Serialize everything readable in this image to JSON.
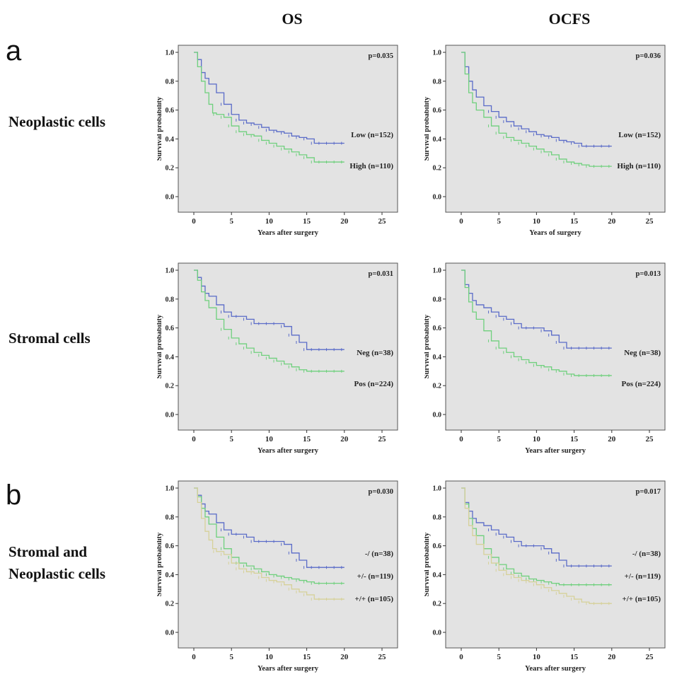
{
  "column_headers": [
    "OS",
    "OCFS"
  ],
  "panel_letters": {
    "a": "a",
    "b": "b"
  },
  "row_labels": {
    "row1": "Neoplastic cells",
    "row2": "Stromal cells",
    "row3_line1": "Stromal and",
    "row3_line2": "Neoplastic cells"
  },
  "colors": {
    "blue": "#5a6bc8",
    "green": "#6fd07d",
    "beige": "#d6d199",
    "plot_bg": "#e3e3e3"
  },
  "chart_data": [
    {
      "type": "line",
      "title": "OS",
      "xlabel": "Years after surgery",
      "ylabel": "Survival probability",
      "xlim": [
        0,
        25
      ],
      "ylim": [
        0,
        1
      ],
      "xticks": [
        "0",
        "5",
        "10",
        "15",
        "20",
        "25"
      ],
      "yticks": [
        "0.0",
        "0.2",
        "0.4",
        "0.6",
        "0.8",
        "1.0"
      ],
      "annotation": "p=0.035",
      "series": [
        {
          "name": "Low (n=152)",
          "color": "#5a6bc8",
          "x": [
            0,
            0.5,
            1,
            1.5,
            2,
            3,
            4,
            5,
            6,
            7,
            8,
            9,
            10,
            11,
            12,
            13,
            14,
            15,
            16,
            17,
            18,
            19,
            20
          ],
          "y": [
            1.0,
            0.95,
            0.86,
            0.82,
            0.78,
            0.72,
            0.64,
            0.57,
            0.53,
            0.51,
            0.5,
            0.48,
            0.46,
            0.45,
            0.44,
            0.42,
            0.41,
            0.4,
            0.37,
            0.37,
            0.37,
            0.37,
            0.37
          ]
        },
        {
          "name": "High (n=110)",
          "color": "#6fd07d",
          "x": [
            0,
            0.5,
            1,
            1.5,
            2,
            2.5,
            3,
            4,
            5,
            6,
            7,
            8,
            9,
            10,
            11,
            12,
            13,
            14,
            15,
            16,
            17,
            18,
            19,
            20
          ],
          "y": [
            1.0,
            0.9,
            0.8,
            0.72,
            0.64,
            0.58,
            0.57,
            0.55,
            0.49,
            0.45,
            0.43,
            0.42,
            0.39,
            0.37,
            0.35,
            0.33,
            0.31,
            0.29,
            0.27,
            0.24,
            0.24,
            0.24,
            0.24,
            0.24
          ]
        }
      ]
    },
    {
      "type": "line",
      "title": "OCFS",
      "xlabel": "Years of surgery",
      "ylabel": "Survival probability",
      "xlim": [
        0,
        25
      ],
      "ylim": [
        0,
        1
      ],
      "xticks": [
        "0",
        "5",
        "10",
        "15",
        "20",
        "25"
      ],
      "yticks": [
        "0.0",
        "0.2",
        "0.4",
        "0.6",
        "0.8",
        "1.0"
      ],
      "annotation": "p=0.036",
      "series": [
        {
          "name": "Low (n=152)",
          "color": "#5a6bc8",
          "x": [
            0,
            0.5,
            1,
            1.5,
            2,
            3,
            4,
            5,
            6,
            7,
            8,
            9,
            10,
            11,
            12,
            13,
            14,
            15,
            16,
            17,
            18,
            19,
            20
          ],
          "y": [
            1.0,
            0.9,
            0.8,
            0.74,
            0.69,
            0.63,
            0.59,
            0.55,
            0.52,
            0.49,
            0.47,
            0.45,
            0.43,
            0.42,
            0.41,
            0.39,
            0.38,
            0.37,
            0.35,
            0.35,
            0.35,
            0.35,
            0.35
          ]
        },
        {
          "name": "High (n=110)",
          "color": "#6fd07d",
          "x": [
            0,
            0.5,
            1,
            1.5,
            2,
            3,
            4,
            5,
            6,
            7,
            8,
            9,
            10,
            11,
            12,
            13,
            14,
            15,
            16,
            17,
            18,
            19,
            20
          ],
          "y": [
            1.0,
            0.85,
            0.72,
            0.65,
            0.6,
            0.55,
            0.49,
            0.44,
            0.41,
            0.39,
            0.37,
            0.35,
            0.33,
            0.31,
            0.29,
            0.26,
            0.24,
            0.23,
            0.22,
            0.21,
            0.21,
            0.21,
            0.21
          ]
        }
      ]
    },
    {
      "type": "line",
      "title": "",
      "xlabel": "Years after surgery",
      "ylabel": "Survival probability",
      "xlim": [
        0,
        25
      ],
      "ylim": [
        0,
        1
      ],
      "xticks": [
        "0",
        "5",
        "10",
        "15",
        "20",
        "25"
      ],
      "yticks": [
        "0.0",
        "0.2",
        "0.4",
        "0.6",
        "0.8",
        "1.0"
      ],
      "annotation": "p=0.031",
      "series": [
        {
          "name": "Neg (n=38)",
          "color": "#5a6bc8",
          "x": [
            0,
            0.5,
            1,
            1.5,
            2,
            3,
            4,
            5,
            6,
            7,
            8,
            9,
            10,
            11,
            12,
            13,
            14,
            15,
            16,
            17,
            18,
            19,
            20
          ],
          "y": [
            1.0,
            0.95,
            0.89,
            0.84,
            0.82,
            0.76,
            0.71,
            0.68,
            0.68,
            0.66,
            0.63,
            0.63,
            0.63,
            0.63,
            0.61,
            0.55,
            0.5,
            0.45,
            0.45,
            0.45,
            0.45,
            0.45,
            0.45
          ]
        },
        {
          "name": "Pos (n=224)",
          "color": "#6fd07d",
          "x": [
            0,
            0.5,
            1,
            1.5,
            2,
            3,
            4,
            5,
            6,
            7,
            8,
            9,
            10,
            11,
            12,
            13,
            14,
            15,
            16,
            17,
            18,
            19,
            20
          ],
          "y": [
            1.0,
            0.93,
            0.85,
            0.79,
            0.74,
            0.66,
            0.59,
            0.53,
            0.49,
            0.46,
            0.43,
            0.41,
            0.39,
            0.37,
            0.35,
            0.33,
            0.31,
            0.3,
            0.3,
            0.3,
            0.3,
            0.3,
            0.3
          ]
        }
      ]
    },
    {
      "type": "line",
      "title": "",
      "xlabel": "Years after  surgery",
      "ylabel": "Survival probability",
      "xlim": [
        0,
        25
      ],
      "ylim": [
        0,
        1
      ],
      "xticks": [
        "0",
        "5",
        "10",
        "15",
        "20",
        "25"
      ],
      "yticks": [
        "0.0",
        "0.2",
        "0.4",
        "0.6",
        "0.8",
        "1.0"
      ],
      "annotation": "p=0.013",
      "series": [
        {
          "name": "Neg (n=38)",
          "color": "#5a6bc8",
          "x": [
            0,
            0.5,
            1,
            1.5,
            2,
            3,
            4,
            5,
            6,
            7,
            8,
            9,
            10,
            11,
            12,
            13,
            14,
            15,
            16,
            17,
            18,
            19,
            20
          ],
          "y": [
            1.0,
            0.9,
            0.84,
            0.79,
            0.76,
            0.74,
            0.71,
            0.68,
            0.66,
            0.63,
            0.6,
            0.6,
            0.6,
            0.58,
            0.55,
            0.5,
            0.46,
            0.46,
            0.46,
            0.46,
            0.46,
            0.46,
            0.46
          ]
        },
        {
          "name": "Pos (n=224)",
          "color": "#6fd07d",
          "x": [
            0,
            0.5,
            1,
            1.5,
            2,
            3,
            4,
            5,
            6,
            7,
            8,
            9,
            10,
            11,
            12,
            13,
            14,
            15,
            16,
            17,
            18,
            19,
            20
          ],
          "y": [
            1.0,
            0.88,
            0.78,
            0.71,
            0.66,
            0.58,
            0.51,
            0.46,
            0.43,
            0.4,
            0.38,
            0.36,
            0.34,
            0.33,
            0.31,
            0.3,
            0.28,
            0.27,
            0.27,
            0.27,
            0.27,
            0.27,
            0.27
          ]
        }
      ]
    },
    {
      "type": "line",
      "title": "",
      "xlabel": "Years after surgery",
      "ylabel": "Survival probability",
      "xlim": [
        0,
        25
      ],
      "ylim": [
        0,
        1
      ],
      "xticks": [
        "0",
        "5",
        "10",
        "15",
        "20",
        "25"
      ],
      "yticks": [
        "0.0",
        "0.2",
        "0.4",
        "0.6",
        "0.8",
        "1.0"
      ],
      "annotation": "p=0.030",
      "series": [
        {
          "name": "-/ (n=38)",
          "color": "#5a6bc8",
          "x": [
            0,
            0.5,
            1,
            1.5,
            2,
            3,
            4,
            5,
            6,
            7,
            8,
            9,
            10,
            11,
            12,
            13,
            14,
            15,
            16,
            17,
            18,
            19,
            20
          ],
          "y": [
            1.0,
            0.95,
            0.89,
            0.84,
            0.82,
            0.76,
            0.71,
            0.68,
            0.68,
            0.66,
            0.63,
            0.63,
            0.63,
            0.63,
            0.61,
            0.55,
            0.5,
            0.45,
            0.45,
            0.45,
            0.45,
            0.45,
            0.45
          ]
        },
        {
          "name": "+/- (n=119)",
          "color": "#6fd07d",
          "x": [
            0,
            0.5,
            1,
            1.5,
            2,
            3,
            4,
            5,
            6,
            7,
            8,
            9,
            10,
            11,
            12,
            13,
            14,
            15,
            16,
            17,
            18,
            19,
            20
          ],
          "y": [
            1.0,
            0.94,
            0.86,
            0.8,
            0.75,
            0.66,
            0.58,
            0.52,
            0.48,
            0.46,
            0.44,
            0.42,
            0.4,
            0.39,
            0.38,
            0.37,
            0.36,
            0.35,
            0.34,
            0.34,
            0.34,
            0.34,
            0.34
          ]
        },
        {
          "name": "+/+ (n=105)",
          "color": "#d6d199",
          "x": [
            0,
            0.5,
            1,
            1.5,
            2,
            2.5,
            3,
            4,
            5,
            6,
            7,
            8,
            9,
            10,
            11,
            12,
            13,
            14,
            15,
            16,
            17,
            18,
            19,
            20
          ],
          "y": [
            1.0,
            0.9,
            0.79,
            0.7,
            0.64,
            0.58,
            0.56,
            0.54,
            0.48,
            0.44,
            0.42,
            0.41,
            0.38,
            0.36,
            0.35,
            0.33,
            0.3,
            0.28,
            0.26,
            0.23,
            0.23,
            0.23,
            0.23,
            0.23
          ]
        }
      ]
    },
    {
      "type": "line",
      "title": "",
      "xlabel": "Years after surgery",
      "ylabel": "Survival probability",
      "xlim": [
        0,
        25
      ],
      "ylim": [
        0,
        1
      ],
      "xticks": [
        "0",
        "5",
        "10",
        "15",
        "20",
        "25"
      ],
      "yticks": [
        "0.0",
        "0.2",
        "0.4",
        "0.6",
        "0.8",
        "1.0"
      ],
      "annotation": "p=0.017",
      "series": [
        {
          "name": "-/ (n=38)",
          "color": "#5a6bc8",
          "x": [
            0,
            0.5,
            1,
            1.5,
            2,
            3,
            4,
            5,
            6,
            7,
            8,
            9,
            10,
            11,
            12,
            13,
            14,
            15,
            16,
            17,
            18,
            19,
            20
          ],
          "y": [
            1.0,
            0.9,
            0.84,
            0.79,
            0.76,
            0.74,
            0.71,
            0.68,
            0.66,
            0.63,
            0.6,
            0.6,
            0.6,
            0.58,
            0.55,
            0.5,
            0.46,
            0.46,
            0.46,
            0.46,
            0.46,
            0.46,
            0.46
          ]
        },
        {
          "name": "+/- (n=119)",
          "color": "#6fd07d",
          "x": [
            0,
            0.5,
            1,
            1.5,
            2,
            3,
            4,
            5,
            6,
            7,
            8,
            9,
            10,
            11,
            12,
            13,
            14,
            15,
            16,
            17,
            18,
            19,
            20
          ],
          "y": [
            1.0,
            0.89,
            0.79,
            0.72,
            0.67,
            0.58,
            0.52,
            0.47,
            0.44,
            0.41,
            0.39,
            0.37,
            0.36,
            0.35,
            0.34,
            0.33,
            0.33,
            0.33,
            0.33,
            0.33,
            0.33,
            0.33,
            0.33
          ]
        },
        {
          "name": "+/+ (n=105)",
          "color": "#d6d199",
          "x": [
            0,
            0.5,
            1,
            1.5,
            2,
            3,
            4,
            5,
            6,
            7,
            8,
            9,
            10,
            11,
            12,
            13,
            14,
            15,
            16,
            17,
            18,
            19,
            20
          ],
          "y": [
            1.0,
            0.86,
            0.74,
            0.67,
            0.61,
            0.54,
            0.48,
            0.43,
            0.4,
            0.38,
            0.36,
            0.35,
            0.33,
            0.31,
            0.29,
            0.27,
            0.25,
            0.23,
            0.21,
            0.2,
            0.2,
            0.2,
            0.2
          ]
        }
      ]
    }
  ]
}
